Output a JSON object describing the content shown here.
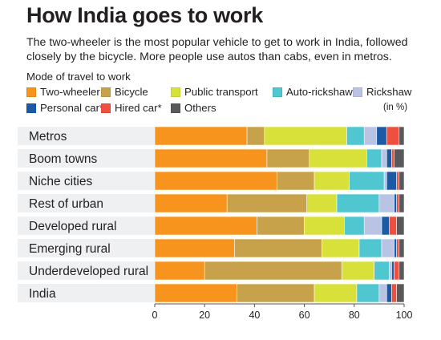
{
  "title": "How India goes to work",
  "subtitle": "The two-wheeler is the most popular vehicle to get to work in India, followed closely by the bicycle. More people use autos than cabs, even in metros.",
  "legend_title": "Mode of travel to work",
  "unit_note": "(in %)",
  "colors": {
    "row_band": "#eef0f2",
    "axis": "#555555"
  },
  "chart_data": {
    "type": "bar",
    "orientation": "horizontal",
    "stacked": true,
    "categories": [
      "Metros",
      "Boom towns",
      "Niche cities",
      "Rest of urban",
      "Developed rural",
      "Emerging rural",
      "Underdeveloped rural",
      "India"
    ],
    "series": [
      {
        "name": "Two-wheeler",
        "color": "#f7941d",
        "values": [
          37,
          45,
          49,
          29,
          41,
          32,
          20,
          33
        ]
      },
      {
        "name": "Bicycle",
        "color": "#c8a24a",
        "values": [
          7,
          17,
          15,
          32,
          19,
          35,
          55,
          31
        ]
      },
      {
        "name": "Public transport",
        "color": "#d7e13a",
        "values": [
          33,
          23,
          14,
          12,
          16,
          15,
          13,
          17
        ]
      },
      {
        "name": "Auto-rickshaw",
        "color": "#4fc6d0",
        "values": [
          7,
          6,
          14,
          17,
          8,
          9,
          6,
          9
        ]
      },
      {
        "name": "Rickshaw",
        "color": "#b9c3e3",
        "values": [
          5,
          2,
          1,
          6,
          7,
          5,
          1,
          3
        ]
      },
      {
        "name": "Personal car*",
        "color": "#1c5aa6",
        "values": [
          4,
          2,
          4,
          1,
          3,
          1,
          1,
          2
        ]
      },
      {
        "name": "Hired car*",
        "color": "#ee4f3e",
        "values": [
          5,
          1,
          1,
          1,
          3,
          1,
          2,
          2
        ]
      },
      {
        "name": "Others",
        "color": "#58595b",
        "values": [
          2,
          4,
          2,
          2,
          3,
          2,
          2,
          3
        ]
      }
    ],
    "x_ticks": [
      "0",
      "20",
      "40",
      "60",
      "80",
      "100"
    ],
    "xlim": [
      0,
      100
    ],
    "legend_position": "top",
    "grid": false
  }
}
